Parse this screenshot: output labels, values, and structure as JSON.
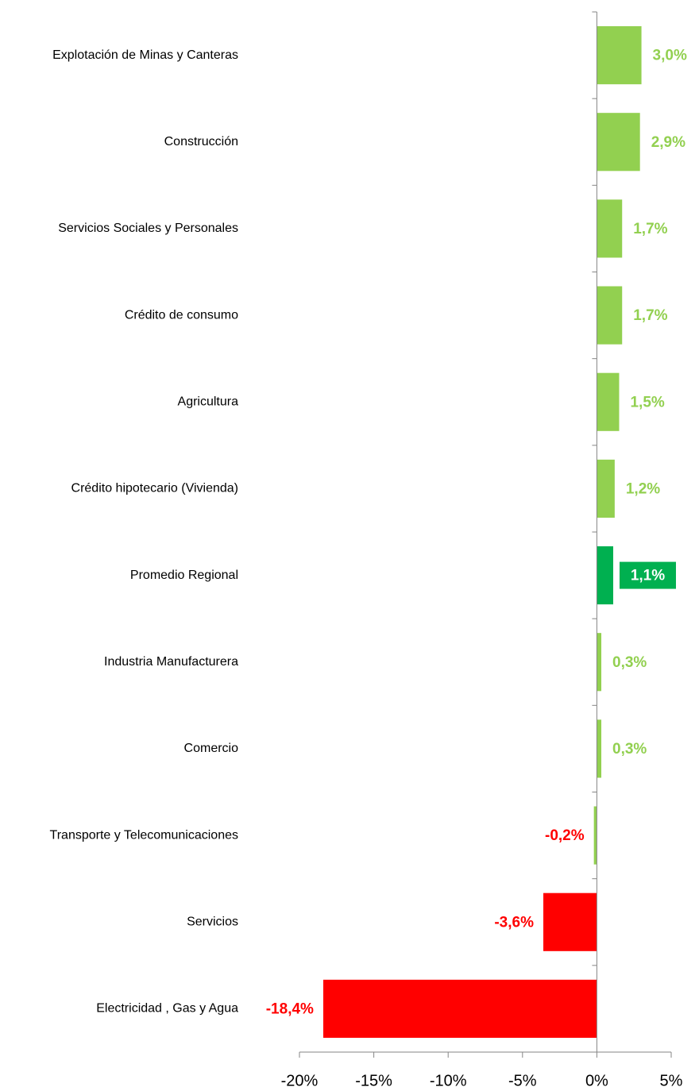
{
  "chart_data": {
    "type": "hbar",
    "categories": [
      "Explotación de Minas y Canteras",
      "Construcción",
      "Servicios Sociales y Personales",
      "Crédito de consumo",
      "Agricultura",
      "Crédito hipotecario (Vivienda)",
      "Promedio Regional",
      "Industria Manufacturera",
      "Comercio",
      "Transporte y Telecomunicaciones",
      "Servicios",
      "Electricidad , Gas y Agua"
    ],
    "values": [
      3.0,
      2.9,
      1.7,
      1.7,
      1.5,
      1.2,
      1.1,
      0.3,
      0.3,
      -0.2,
      -3.6,
      -18.4
    ],
    "value_labels": [
      "3,0%",
      "2,9%",
      "1,7%",
      "1,7%",
      "1,5%",
      "1,2%",
      "1,1%",
      "0,3%",
      "0,3%",
      "-0,2%",
      "-3,6%",
      "-18,4%"
    ],
    "colors": [
      "#92d050",
      "#92d050",
      "#92d050",
      "#92d050",
      "#92d050",
      "#92d050",
      "#00b050",
      "#92d050",
      "#92d050",
      "#92d050",
      "#ff0000",
      "#ff0000"
    ],
    "label_colors": [
      "#92d050",
      "#92d050",
      "#92d050",
      "#92d050",
      "#92d050",
      "#92d050",
      "#ffffff",
      "#92d050",
      "#92d050",
      "#ff0000",
      "#ff0000",
      "#ff0000"
    ],
    "highlight": "Promedio Regional",
    "xlim": [
      -20,
      5
    ],
    "xticks": [
      {
        "value": -20,
        "label": "-20%"
      },
      {
        "value": -15,
        "label": "-15%"
      },
      {
        "value": -10,
        "label": "-10%"
      },
      {
        "value": -5,
        "label": "-5%"
      },
      {
        "value": 0,
        "label": "0%"
      },
      {
        "value": 5,
        "label": "5%"
      }
    ]
  }
}
